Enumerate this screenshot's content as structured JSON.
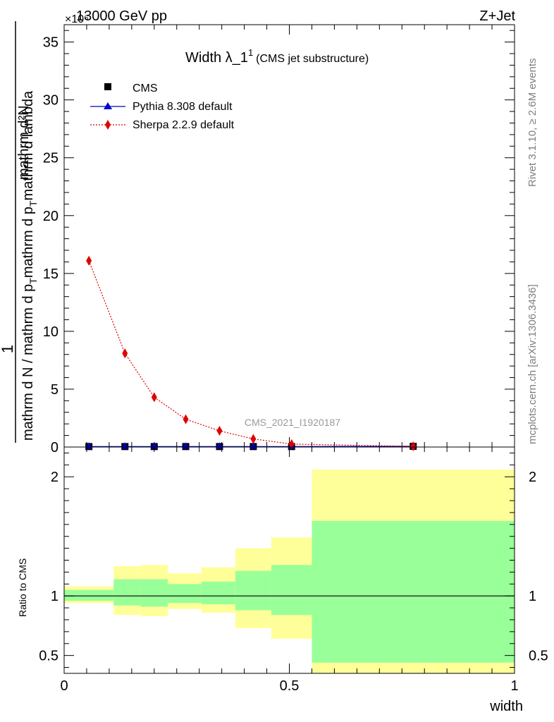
{
  "header": {
    "left": "13000 GeV pp",
    "right": "Z+Jet",
    "exponent": "×10⁶"
  },
  "side": {
    "rivet": "Rivet 3.1.10, ≥ 2.6M events",
    "mcplots": "mcplots.cern.ch [arXiv:1306.3436]"
  },
  "watermark": "CMS_2021_I1920187",
  "chart_data": [
    {
      "type": "line",
      "title": "Width λ_1",
      "title_sup": "1",
      "subtitle": "(CMS jet substructure)",
      "xlabel": "width",
      "ylabel_num": "1",
      "ylabel_den": "mathrm d N / mathrm d p_T mathrm d p_T mathrm d lambda",
      "ylabel_top": "mathrm d²N",
      "ylabel_parts": [
        "mathrm d N / mathrm d p",
        "T",
        "mathrm d p",
        "T",
        "mathrm d lambda"
      ],
      "ylim": [
        0,
        36.5
      ],
      "xlim": [
        0,
        1
      ],
      "y_scale_label": "×10⁶",
      "yticks": [
        0,
        5,
        10,
        15,
        20,
        25,
        30,
        35
      ],
      "legend_position": "top-left",
      "legend": [
        "CMS",
        "Pythia 8.308 default",
        "Sherpa 2.2.9 default"
      ],
      "series": [
        {
          "name": "CMS",
          "marker": "square",
          "color": "#000000",
          "x": [
            0.055,
            0.135,
            0.2,
            0.27,
            0.345,
            0.42,
            0.505,
            0.775
          ],
          "y": [
            0.04,
            0.04,
            0.04,
            0.04,
            0.04,
            0.04,
            0.04,
            0.06
          ]
        },
        {
          "name": "Pythia 8.308 default",
          "marker": "triangle",
          "color": "#0000cc",
          "x": [
            0.055,
            0.135,
            0.2,
            0.27,
            0.345,
            0.42,
            0.505,
            0.775
          ],
          "y": [
            0.04,
            0.04,
            0.04,
            0.04,
            0.04,
            0.04,
            0.04,
            0.06
          ]
        },
        {
          "name": "Sherpa 2.2.9 default",
          "marker": "diamond",
          "color": "#e00000",
          "x": [
            0.055,
            0.135,
            0.2,
            0.27,
            0.345,
            0.42,
            0.505,
            0.775
          ],
          "y": [
            16.1,
            8.1,
            4.3,
            2.4,
            1.4,
            0.7,
            0.25,
            0.06
          ]
        }
      ]
    },
    {
      "type": "area",
      "ylabel": "Ratio to CMS",
      "xlabel": "width",
      "xlim": [
        0,
        1
      ],
      "ylim": [
        0.35,
        2.25
      ],
      "yticks": [
        0.5,
        1,
        2
      ],
      "xticks": [
        0,
        0.5,
        1
      ],
      "xtick_labels": [
        "0",
        "0.5",
        "1"
      ],
      "ytick_labels": [
        "0.5",
        "1",
        "2"
      ],
      "reference_line": 1,
      "bands": {
        "bins": [
          [
            0,
            0.11
          ],
          [
            0.11,
            0.17
          ],
          [
            0.17,
            0.23
          ],
          [
            0.23,
            0.305
          ],
          [
            0.305,
            0.38
          ],
          [
            0.38,
            0.46
          ],
          [
            0.46,
            0.55
          ],
          [
            0.55,
            1.0
          ]
        ],
        "yellow": [
          [
            0.94,
            1.08
          ],
          [
            0.84,
            1.25
          ],
          [
            0.83,
            1.26
          ],
          [
            0.89,
            1.19
          ],
          [
            0.86,
            1.24
          ],
          [
            0.73,
            1.4
          ],
          [
            0.64,
            1.49
          ],
          [
            0.35,
            2.06
          ]
        ],
        "green": [
          [
            0.96,
            1.05
          ],
          [
            0.92,
            1.14
          ],
          [
            0.91,
            1.14
          ],
          [
            0.94,
            1.1
          ],
          [
            0.93,
            1.12
          ],
          [
            0.88,
            1.21
          ],
          [
            0.84,
            1.26
          ],
          [
            0.44,
            1.63
          ]
        ],
        "yellow_color": "#ffff99",
        "green_color": "#99ff99"
      }
    }
  ]
}
